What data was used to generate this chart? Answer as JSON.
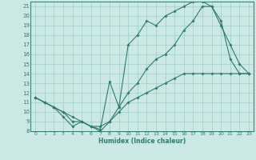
{
  "xlabel": "Humidex (Indice chaleur)",
  "bg_color": "#cce8e4",
  "line_color": "#2d7a6e",
  "grid_color": "#9eccc6",
  "xlim": [
    -0.5,
    23.5
  ],
  "ylim": [
    8,
    21.5
  ],
  "xticks": [
    0,
    1,
    2,
    3,
    4,
    5,
    6,
    7,
    8,
    9,
    10,
    11,
    12,
    13,
    14,
    15,
    16,
    17,
    18,
    19,
    20,
    21,
    22,
    23
  ],
  "yticks": [
    8,
    9,
    10,
    11,
    12,
    13,
    14,
    15,
    16,
    17,
    18,
    19,
    20,
    21
  ],
  "line1_x": [
    0,
    1,
    2,
    3,
    4,
    5,
    6,
    7,
    8,
    9,
    10,
    11,
    12,
    13,
    14,
    15,
    16,
    17,
    18,
    19,
    20,
    21,
    22,
    23
  ],
  "line1_y": [
    11.5,
    11.0,
    10.5,
    9.5,
    8.5,
    9.0,
    8.5,
    8.2,
    13.2,
    10.5,
    17.0,
    18.0,
    19.5,
    19.0,
    20.0,
    20.5,
    21.0,
    21.5,
    21.5,
    21.0,
    19.5,
    15.5,
    14.0,
    14.0
  ],
  "line2_x": [
    0,
    1,
    2,
    3,
    4,
    5,
    6,
    7,
    8,
    9,
    10,
    11,
    12,
    13,
    14,
    15,
    16,
    17,
    18,
    19,
    20,
    21,
    22,
    23
  ],
  "line2_y": [
    11.5,
    11.0,
    10.5,
    10.0,
    9.5,
    9.0,
    8.5,
    8.5,
    9.0,
    10.0,
    11.0,
    11.5,
    12.0,
    12.5,
    13.0,
    13.5,
    14.0,
    14.0,
    14.0,
    14.0,
    14.0,
    14.0,
    14.0,
    14.0
  ],
  "line3_x": [
    0,
    1,
    2,
    3,
    4,
    5,
    6,
    7,
    8,
    9,
    10,
    11,
    12,
    13,
    14,
    15,
    16,
    17,
    18,
    19,
    20,
    21,
    22,
    23
  ],
  "line3_y": [
    11.5,
    11.0,
    10.5,
    10.0,
    9.0,
    9.0,
    8.5,
    8.0,
    9.0,
    10.5,
    12.0,
    13.0,
    14.5,
    15.5,
    16.0,
    17.0,
    18.5,
    19.5,
    21.0,
    21.0,
    19.0,
    17.0,
    15.0,
    14.0
  ]
}
